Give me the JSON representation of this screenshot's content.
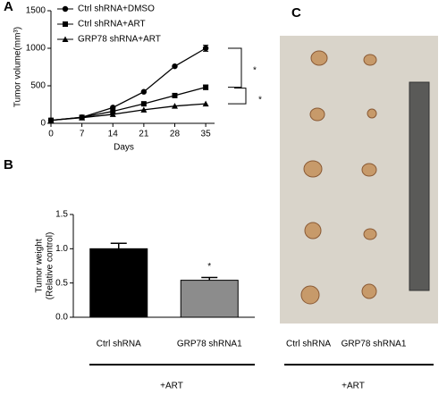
{
  "chart_data": [
    {
      "type": "line",
      "panel_label": "A",
      "xlabel": "Days",
      "ylabel": "Tumor volume(mm³)",
      "x": [
        0,
        7,
        14,
        21,
        28,
        35
      ],
      "xlim": [
        0,
        37
      ],
      "xticks": [
        0,
        7,
        14,
        21,
        28,
        35
      ],
      "ylim": [
        0,
        1500
      ],
      "yticks": [
        0,
        500,
        1000,
        1500
      ],
      "series": [
        {
          "name": "Ctrl shRNA+DMSO",
          "color": "#000000",
          "marker": "circle",
          "values": [
            40,
            80,
            210,
            420,
            760,
            1000
          ],
          "errors": [
            null,
            null,
            null,
            null,
            null,
            40
          ]
        },
        {
          "name": "Ctrl shRNA+ART",
          "color": "#000000",
          "marker": "square",
          "values": [
            40,
            80,
            160,
            260,
            370,
            480
          ],
          "errors": [
            null,
            null,
            null,
            null,
            null,
            30
          ]
        },
        {
          "name": "GRP78 shRNA+ART",
          "color": "#000000",
          "marker": "triangle",
          "values": [
            40,
            75,
            120,
            180,
            230,
            260
          ],
          "errors": [
            null,
            null,
            null,
            null,
            null,
            null
          ]
        }
      ],
      "annotations": [
        "*",
        "*"
      ]
    },
    {
      "type": "bar",
      "panel_label": "B",
      "ylabel": [
        "Tumor weight",
        "(Relative control)"
      ],
      "categories": [
        "Ctrl shRNA",
        "GRP78 shRNA1"
      ],
      "values": [
        1.0,
        0.54
      ],
      "errors": [
        0.08,
        0.04
      ],
      "colors": [
        "#000000",
        "#8c8c8c"
      ],
      "ylim": [
        0,
        1.5
      ],
      "yticks": [
        {
          "value": 0,
          "label": "0.0"
        },
        0.5,
        {
          "value": 1,
          "label": "1.0"
        },
        1.5
      ],
      "annotations": [
        "*"
      ],
      "group_label": "+ART"
    }
  ],
  "photo_panel": {
    "panel_label": "C",
    "labels": [
      "Ctrl shRNA",
      "GRP78 shRNA1"
    ],
    "group_label": "+ART"
  }
}
